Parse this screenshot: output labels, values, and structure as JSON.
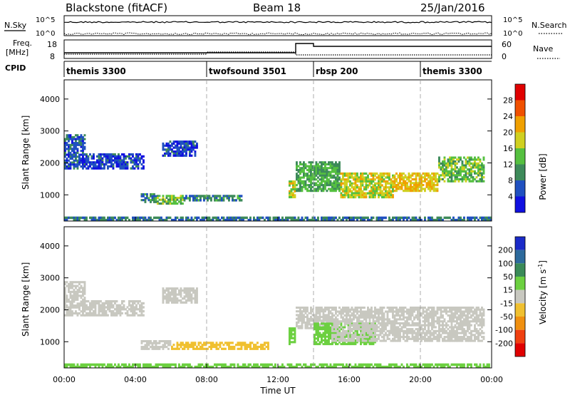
{
  "header": {
    "station": "Blackstone (fitACF)",
    "beam": "Beam 18",
    "date": "25/Jan/2016"
  },
  "noise_panel": {
    "left_label": "N.Sky",
    "right_label": "N.Search",
    "left_ticks": [
      "10^5",
      "10^0"
    ],
    "right_ticks": [
      "10^5",
      "10^0"
    ]
  },
  "freq_panel": {
    "left_label_line1": "Freq.",
    "left_label_line2": "[MHz]",
    "right_label": "Nave",
    "left_ticks": [
      "18",
      "8"
    ],
    "right_ticks": [
      "60",
      "0"
    ]
  },
  "cpid_panel": {
    "label": "CPID",
    "segments": [
      {
        "start_hour": 0,
        "label": "themis 3300"
      },
      {
        "start_hour": 8,
        "label": "twofsound 3501"
      },
      {
        "start_hour": 14,
        "label": "rbsp 200"
      },
      {
        "start_hour": 20,
        "label": "themis 3300"
      }
    ]
  },
  "axes": {
    "x_label": "Time UT",
    "x_ticks": [
      "00:00",
      "04:00",
      "08:00",
      "12:00",
      "16:00",
      "20:00",
      "00:00"
    ],
    "x_range_hours": [
      0,
      24
    ],
    "y_label": "Slant Range [km]",
    "y_ticks": [
      "1000",
      "2000",
      "3000",
      "4000"
    ],
    "y_tick_values": [
      1000,
      2000,
      3000,
      4000
    ],
    "y_range_km": [
      180,
      4600
    ]
  },
  "colorbars": {
    "power": {
      "label": "Power [dB]",
      "ticks": [
        "4",
        "8",
        "12",
        "16",
        "20",
        "24",
        "28"
      ],
      "colors": [
        "#1010e0",
        "#2050c0",
        "#3d8a5a",
        "#55c040",
        "#d0d020",
        "#f0a000",
        "#f05000",
        "#e00000"
      ]
    },
    "velocity": {
      "label_main": "Velocity [m s",
      "label_sup": "-1",
      "label_end": "]",
      "ticks": [
        "200",
        "100",
        "50",
        "15",
        "-15",
        "-50",
        "-100",
        "-200"
      ],
      "colors": [
        "#1a2ac8",
        "#2d6a9c",
        "#3a8a58",
        "#6cd040",
        "#c8c8c0",
        "#f0c030",
        "#f09010",
        "#f04010",
        "#e00000"
      ]
    }
  },
  "chart_data": {
    "type": "heatmap",
    "panels": [
      {
        "name": "Power",
        "units": "dB",
        "bands": [
          {
            "t0": 0.0,
            "t1": 1.2,
            "r0": 1800,
            "r1": 2900,
            "value": 6
          },
          {
            "t0": 1.0,
            "t1": 4.5,
            "r0": 1800,
            "r1": 2300,
            "value": 5
          },
          {
            "t0": 5.5,
            "t1": 7.5,
            "r0": 2200,
            "r1": 2700,
            "value": 5
          },
          {
            "t0": 4.3,
            "t1": 5.2,
            "r0": 750,
            "r1": 1050,
            "value": 9
          },
          {
            "t0": 5.2,
            "t1": 6.7,
            "r0": 700,
            "r1": 1000,
            "value": 14
          },
          {
            "t0": 6.7,
            "t1": 10.0,
            "r0": 800,
            "r1": 1000,
            "value": 9
          },
          {
            "t0": 12.6,
            "t1": 13.0,
            "r0": 900,
            "r1": 1450,
            "value": 18
          },
          {
            "t0": 13.0,
            "t1": 15.5,
            "r0": 1100,
            "r1": 2050,
            "value": 12
          },
          {
            "t0": 15.5,
            "t1": 18.5,
            "r0": 900,
            "r1": 1700,
            "value": 18
          },
          {
            "t0": 18.5,
            "t1": 21.0,
            "r0": 1100,
            "r1": 1700,
            "value": 20
          },
          {
            "t0": 21.0,
            "t1": 23.6,
            "r0": 1400,
            "r1": 2200,
            "value": 14
          },
          {
            "t0": 0.0,
            "t1": 24.0,
            "r0": 180,
            "r1": 320,
            "value": 8
          }
        ]
      },
      {
        "name": "Velocity",
        "units": "m s-1",
        "bands": [
          {
            "t0": 0.0,
            "t1": 1.2,
            "r0": 1800,
            "r1": 2900,
            "value": 0
          },
          {
            "t0": 1.0,
            "t1": 4.5,
            "r0": 1800,
            "r1": 2300,
            "value": 0
          },
          {
            "t0": 5.5,
            "t1": 7.5,
            "r0": 2200,
            "r1": 2700,
            "value": 0
          },
          {
            "t0": 4.3,
            "t1": 6.0,
            "r0": 750,
            "r1": 1050,
            "value": 0
          },
          {
            "t0": 6.0,
            "t1": 11.5,
            "r0": 750,
            "r1": 1000,
            "value": -30
          },
          {
            "t0": 12.6,
            "t1": 13.0,
            "r0": 900,
            "r1": 1450,
            "value": 30
          },
          {
            "t0": 13.0,
            "t1": 15.0,
            "r0": 1400,
            "r1": 2100,
            "value": 0
          },
          {
            "t0": 14.0,
            "t1": 17.5,
            "r0": 900,
            "r1": 1600,
            "value": 25
          },
          {
            "t0": 15.0,
            "t1": 23.6,
            "r0": 1000,
            "r1": 2100,
            "value": 0
          },
          {
            "t0": 0.0,
            "t1": 24.0,
            "r0": 180,
            "r1": 320,
            "value": 25
          }
        ]
      }
    ]
  }
}
